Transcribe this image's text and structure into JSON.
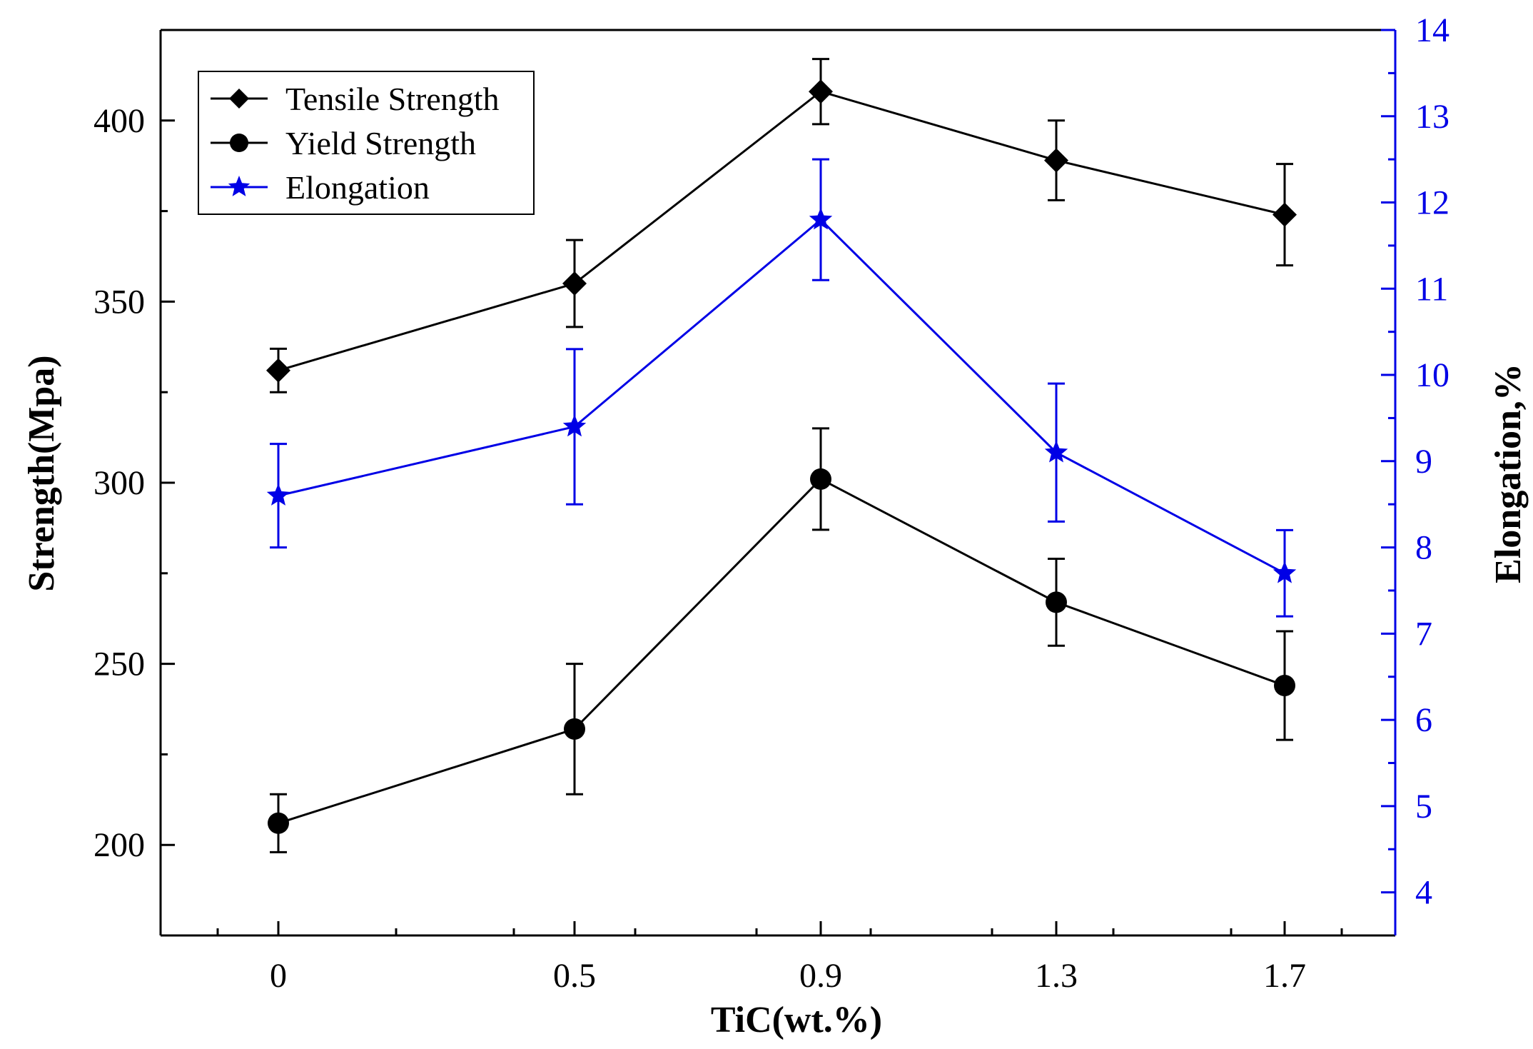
{
  "chart_data": {
    "type": "line",
    "xlabel": "TiC(wt.%)",
    "ylabel": "Strength(Mpa)",
    "y2label": "Elongation,%",
    "x_tick_labels": [
      "0",
      "0.5",
      "0.9",
      "1.3",
      "1.7"
    ],
    "ylim": [
      175,
      425
    ],
    "y_ticks": [
      200,
      250,
      300,
      350,
      400
    ],
    "y2lim": [
      3.5,
      14
    ],
    "y2_ticks": [
      4,
      5,
      6,
      7,
      8,
      9,
      10,
      11,
      12,
      13,
      14
    ],
    "legend_position": "top-left",
    "colors": {
      "black": "#000000",
      "blue": "#0000e6"
    },
    "series": [
      {
        "name": "Tensile Strength",
        "axis": "left",
        "marker": "diamond",
        "color": "#000000",
        "values": [
          331,
          355,
          408,
          389,
          374
        ],
        "errors": [
          6,
          12,
          9,
          11,
          14
        ]
      },
      {
        "name": "Yield Strength",
        "axis": "left",
        "marker": "circle",
        "color": "#000000",
        "values": [
          206,
          232,
          301,
          267,
          244
        ],
        "errors": [
          8,
          18,
          14,
          12,
          15
        ]
      },
      {
        "name": "Elongation",
        "axis": "right",
        "marker": "star",
        "color": "#0000e6",
        "values": [
          8.6,
          9.4,
          11.8,
          9.1,
          7.7
        ],
        "errors": [
          0.6,
          0.9,
          0.7,
          0.8,
          0.5
        ]
      }
    ]
  }
}
